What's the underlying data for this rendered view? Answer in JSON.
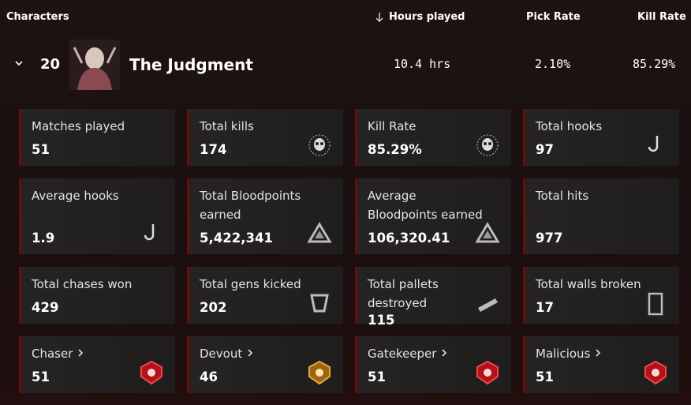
{
  "header": {
    "columns": [
      "Characters",
      "Hours played",
      "Pick Rate",
      "Kill Rate"
    ]
  },
  "row": {
    "rank": "20",
    "name": "The Judgment",
    "hours": "10.4 hrs",
    "pick_rate": "2.10%",
    "kill_rate": "85.29%"
  },
  "cards": [
    {
      "label": "Matches played",
      "value": "51"
    },
    {
      "label": "Total kills",
      "value": "174"
    },
    {
      "label": "Kill Rate",
      "value": "85.29%"
    },
    {
      "label": "Total hooks",
      "value": "97"
    },
    {
      "label": "Average hooks",
      "value": "1.9"
    },
    {
      "label": "Total Bloodpoints earned",
      "value": "5,422,341"
    },
    {
      "label": "Average Bloodpoints earned",
      "value": "106,320.41"
    },
    {
      "label": "Total hits",
      "value": "977"
    },
    {
      "label": "Total chases won",
      "value": "429"
    },
    {
      "label": "Total gens kicked",
      "value": "202"
    },
    {
      "label": "Total pallets destroyed",
      "value": "115"
    },
    {
      "label": "Total walls broken",
      "value": "17"
    },
    {
      "label": "Chaser",
      "value": "51"
    },
    {
      "label": "Devout",
      "value": "46"
    },
    {
      "label": "Gatekeeper",
      "value": "51"
    },
    {
      "label": "Malicious",
      "value": "51"
    }
  ]
}
